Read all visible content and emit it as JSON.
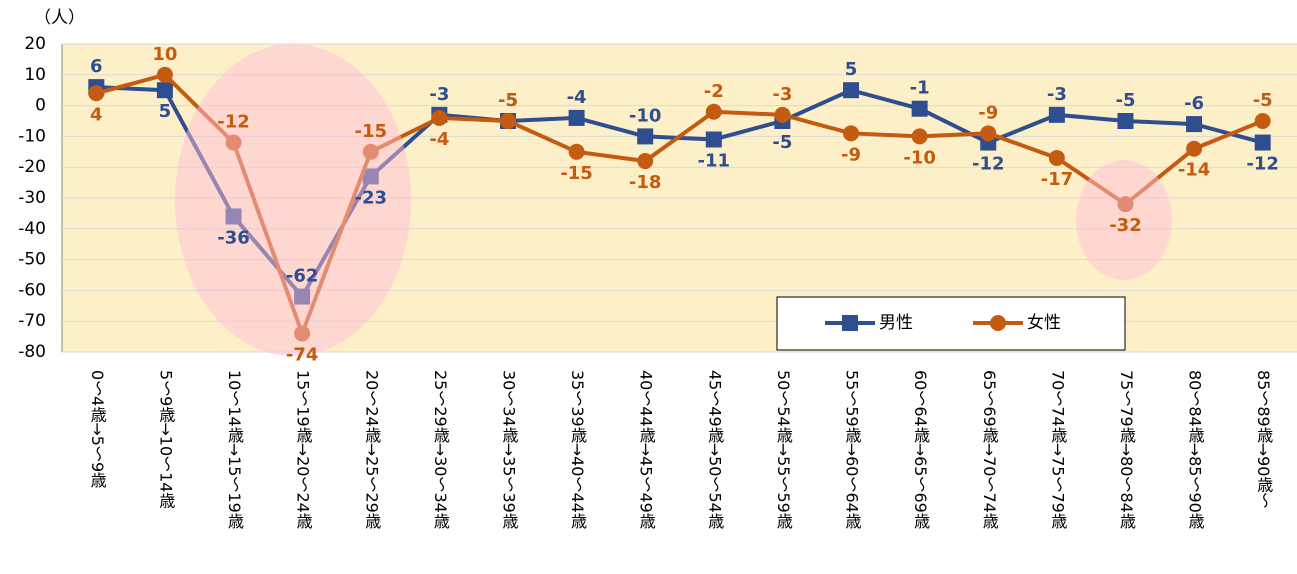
{
  "chart_data": {
    "type": "line",
    "y_axis_label": "（人）",
    "categories": [
      "0～4歳→5～9歳",
      "5～9歳→10～14歳",
      "10～14歳→15～19歳",
      "15～19歳→20～24歳",
      "20～24歳→25～29歳",
      "25～29歳→30～34歳",
      "30～34歳→35～39歳",
      "35～39歳→40～44歳",
      "40～44歳→45～49歳",
      "45～49歳→50～54歳",
      "50～54歳→55～59歳",
      "55～59歳→60～64歳",
      "60～64歳→65～69歳",
      "65～69歳→70～74歳",
      "70～74歳→75～79歳",
      "75～79歳→80～84歳",
      "80～84歳→85～90歳",
      "85～89歳→90歳～"
    ],
    "series": [
      {
        "name": "男性",
        "color": "#2f4e8f",
        "marker": "square",
        "values": [
          6,
          5,
          -36,
          -62,
          -23,
          -3,
          -5,
          -4,
          -10,
          -11,
          -5,
          5,
          -1,
          -12,
          -3,
          -5,
          -6,
          -12
        ]
      },
      {
        "name": "女性",
        "color": "#c55a11",
        "marker": "circle",
        "values": [
          4,
          10,
          -12,
          -74,
          -15,
          -4,
          -5,
          -15,
          -18,
          -2,
          -3,
          -9,
          -10,
          -9,
          -17,
          -32,
          -14,
          -5
        ]
      }
    ],
    "ylim": [
      -80,
      20
    ],
    "yticks": [
      -80,
      -70,
      -60,
      -50,
      -40,
      -30,
      -20,
      -10,
      0,
      10,
      20
    ],
    "grid": true,
    "legend": "lower right"
  }
}
